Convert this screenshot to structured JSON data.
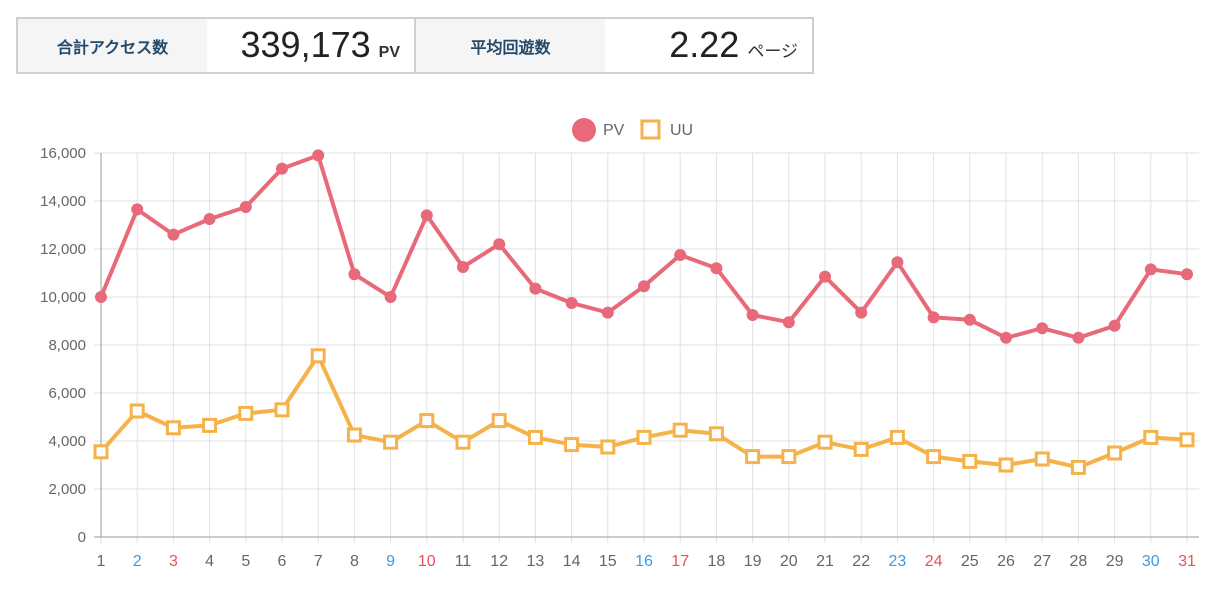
{
  "summary": {
    "total_access": {
      "label": "合計アクセス数",
      "value": "339,173",
      "unit": "PV"
    },
    "avg_pages": {
      "label": "平均回遊数",
      "value": "2.22",
      "unit": "ページ"
    }
  },
  "colors": {
    "pv": "#e8697a",
    "uu": "#f6b24a",
    "saturday": "#3a9be8",
    "holiday": "#e8505a",
    "weekday": "#666666"
  },
  "chart_data": {
    "type": "line",
    "x": [
      "1",
      "2",
      "3",
      "4",
      "5",
      "6",
      "7",
      "8",
      "9",
      "10",
      "11",
      "12",
      "13",
      "14",
      "15",
      "16",
      "17",
      "18",
      "19",
      "20",
      "21",
      "22",
      "23",
      "24",
      "25",
      "26",
      "27",
      "28",
      "29",
      "30",
      "31"
    ],
    "x_label_styles": [
      "weekday",
      "saturday",
      "holiday",
      "weekday",
      "weekday",
      "weekday",
      "weekday",
      "weekday",
      "saturday",
      "holiday",
      "weekday",
      "weekday",
      "weekday",
      "weekday",
      "weekday",
      "saturday",
      "holiday",
      "weekday",
      "weekday",
      "weekday",
      "weekday",
      "weekday",
      "saturday",
      "holiday",
      "weekday",
      "weekday",
      "weekday",
      "weekday",
      "weekday",
      "saturday",
      "holiday"
    ],
    "series": [
      {
        "name": "PV",
        "marker": "circle",
        "values": [
          10000,
          13650,
          12600,
          13250,
          13750,
          15350,
          15900,
          10950,
          10000,
          13400,
          11250,
          12200,
          10350,
          9750,
          9350,
          10450,
          11750,
          11200,
          9250,
          8950,
          10850,
          9350,
          11450,
          9150,
          9050,
          8300,
          8700,
          8300,
          8800,
          11150,
          10950
        ]
      },
      {
        "name": "UU",
        "marker": "square",
        "values": [
          3550,
          5250,
          4550,
          4650,
          5150,
          5300,
          7550,
          4250,
          3950,
          4850,
          3950,
          4850,
          4150,
          3850,
          3750,
          4150,
          4450,
          4300,
          3350,
          3350,
          3950,
          3650,
          4150,
          3350,
          3150,
          3000,
          3250,
          2900,
          3500,
          4150,
          4050
        ]
      }
    ],
    "y_ticks": [
      0,
      2000,
      4000,
      6000,
      8000,
      10000,
      12000,
      14000,
      16000
    ],
    "y_tick_labels": [
      "0",
      "2,000",
      "4,000",
      "6,000",
      "8,000",
      "10,000",
      "12,000",
      "14,000",
      "16,000"
    ],
    "ylim": [
      0,
      16000
    ],
    "grid": true,
    "legend_position": "top-center"
  }
}
